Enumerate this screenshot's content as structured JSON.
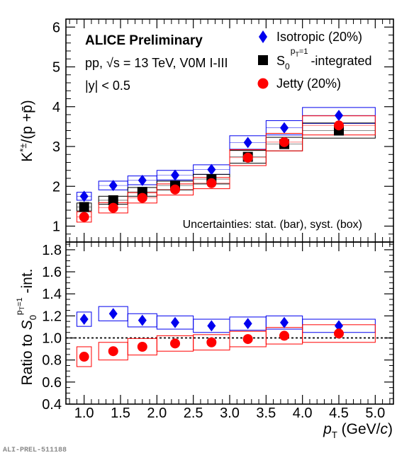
{
  "chart_data": [
    {
      "type": "scatter",
      "panel": "top",
      "ylabel": "K*±/(p + p̄)",
      "ylim": [
        0.6,
        6.2
      ],
      "yticks": [
        "1",
        "2",
        "3",
        "4",
        "5",
        "6"
      ],
      "xlim": [
        0.75,
        5.25
      ],
      "bins": [
        [
          0.9,
          1.1
        ],
        [
          1.2,
          1.6
        ],
        [
          1.6,
          2.0
        ],
        [
          2.0,
          2.5
        ],
        [
          2.5,
          3.0
        ],
        [
          3.0,
          3.5
        ],
        [
          3.5,
          4.0
        ],
        [
          4.0,
          5.0
        ]
      ],
      "x": [
        1.0,
        1.4,
        1.8,
        2.25,
        2.75,
        3.25,
        3.75,
        4.5
      ],
      "series": [
        {
          "name": "Isotropic (20%)",
          "marker": "diamond",
          "color": "#0000ee",
          "values": [
            1.75,
            2.02,
            2.15,
            2.28,
            2.42,
            3.1,
            3.47,
            3.78
          ],
          "syst": [
            0.1,
            0.11,
            0.11,
            0.12,
            0.12,
            0.17,
            0.18,
            0.2
          ]
        },
        {
          "name": "S0 pT=1 -integrated",
          "marker": "square",
          "color": "#000000",
          "values": [
            1.48,
            1.65,
            1.86,
            2.02,
            2.18,
            2.74,
            3.06,
            3.4
          ],
          "syst": [
            0.1,
            0.1,
            0.11,
            0.11,
            0.12,
            0.16,
            0.17,
            0.19
          ]
        },
        {
          "name": "Jetty (20%)",
          "marker": "circle",
          "color": "#ff0000",
          "values": [
            1.23,
            1.46,
            1.71,
            1.92,
            2.08,
            2.72,
            3.11,
            3.53
          ],
          "syst": [
            0.13,
            0.13,
            0.13,
            0.14,
            0.14,
            0.2,
            0.22,
            0.24
          ]
        }
      ]
    },
    {
      "type": "scatter",
      "panel": "bottom",
      "ylabel": "Ratio to S0 pT=1 -int.",
      "xlabel": "pT (GeV/c)",
      "ylim": [
        0.4,
        1.87
      ],
      "yticks": [
        "0.4",
        "0.6",
        "0.8",
        "1.0",
        "1.2",
        "1.4",
        "1.6",
        "1.8"
      ],
      "xticks": [
        "1.0",
        "1.5",
        "2.0",
        "2.5",
        "3.0",
        "3.5",
        "4.0",
        "4.5",
        "5.0"
      ],
      "reference_line": 1.0,
      "x": [
        1.0,
        1.4,
        1.8,
        2.25,
        2.75,
        3.25,
        3.75,
        4.5
      ],
      "series": [
        {
          "name": "Isotropic (20%)",
          "marker": "diamond",
          "color": "#0000ee",
          "values": [
            1.17,
            1.22,
            1.16,
            1.14,
            1.11,
            1.13,
            1.14,
            1.11
          ],
          "syst": [
            0.065,
            0.065,
            0.06,
            0.06,
            0.06,
            0.06,
            0.06,
            0.06
          ]
        },
        {
          "name": "Jetty (20%)",
          "marker": "circle",
          "color": "#ff0000",
          "values": [
            0.83,
            0.88,
            0.92,
            0.95,
            0.96,
            0.99,
            1.02,
            1.04
          ],
          "syst": [
            0.09,
            0.08,
            0.075,
            0.07,
            0.07,
            0.07,
            0.075,
            0.08
          ]
        }
      ]
    }
  ],
  "annotations": {
    "title": "ALICE Preliminary",
    "system": "pp, √s = 13 TeV, V0M I-III",
    "rapidity": "|y| < 0.5",
    "uncertainties": "Uncertainties: stat. (bar), syst. (box)"
  },
  "legend": {
    "isotropic": "Isotropic (20%)",
    "s0_prefix": "S",
    "s0_sub": "0",
    "s0_sup": "p",
    "s0_sup_sub": "T",
    "s0_sup_rest": "=1",
    "s0_suffix": "-integrated",
    "jetty": "Jetty (20%)"
  },
  "footer": "ALI-PREL-511188",
  "colors": {
    "blue": "#0000ee",
    "black": "#000000",
    "red": "#ff0000"
  }
}
